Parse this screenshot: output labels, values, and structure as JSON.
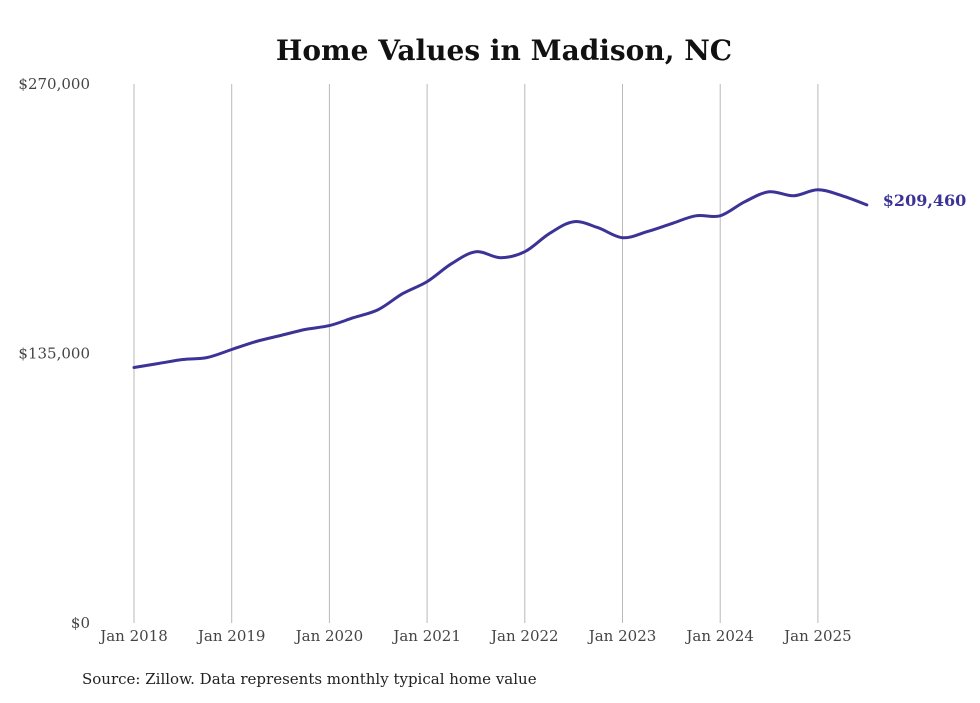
{
  "chart_data": {
    "type": "line",
    "title": "Home Values in Madison, NC",
    "xlabel": "",
    "ylabel": "",
    "ylim": [
      0,
      270000
    ],
    "grid": {
      "vertical": true,
      "horizontal": false
    },
    "legend": "none",
    "y_ticks": [
      {
        "value": 0,
        "label": "$0"
      },
      {
        "value": 135000,
        "label": "$135,000"
      },
      {
        "value": 270000,
        "label": "$270,000"
      }
    ],
    "x_ticks": [
      {
        "year": 2018,
        "label": "Jan 2018"
      },
      {
        "year": 2019,
        "label": "Jan 2019"
      },
      {
        "year": 2020,
        "label": "Jan 2020"
      },
      {
        "year": 2021,
        "label": "Jan 2021"
      },
      {
        "year": 2022,
        "label": "Jan 2022"
      },
      {
        "year": 2023,
        "label": "Jan 2023"
      },
      {
        "year": 2024,
        "label": "Jan 2024"
      },
      {
        "year": 2025,
        "label": "Jan 2025"
      }
    ],
    "series": [
      {
        "name": "Typical home value",
        "color": "#3b3496",
        "points": [
          [
            2018.0,
            128000
          ],
          [
            2018.25,
            130000
          ],
          [
            2018.5,
            132000
          ],
          [
            2018.75,
            133000
          ],
          [
            2019.0,
            137000
          ],
          [
            2019.25,
            141000
          ],
          [
            2019.5,
            144000
          ],
          [
            2019.75,
            147000
          ],
          [
            2020.0,
            149000
          ],
          [
            2020.25,
            153000
          ],
          [
            2020.5,
            157000
          ],
          [
            2020.75,
            165000
          ],
          [
            2021.0,
            171000
          ],
          [
            2021.25,
            180000
          ],
          [
            2021.5,
            186000
          ],
          [
            2021.75,
            183000
          ],
          [
            2022.0,
            186000
          ],
          [
            2022.25,
            195000
          ],
          [
            2022.5,
            201000
          ],
          [
            2022.75,
            198000
          ],
          [
            2023.0,
            193000
          ],
          [
            2023.25,
            196000
          ],
          [
            2023.5,
            200000
          ],
          [
            2023.75,
            204000
          ],
          [
            2024.0,
            204000
          ],
          [
            2024.25,
            211000
          ],
          [
            2024.5,
            216000
          ],
          [
            2024.75,
            214000
          ],
          [
            2025.0,
            217000
          ],
          [
            2025.25,
            214000
          ],
          [
            2025.5,
            209460
          ]
        ]
      }
    ],
    "end_label": "$209,460",
    "source": "Source: Zillow. Data represents monthly typical home value"
  }
}
